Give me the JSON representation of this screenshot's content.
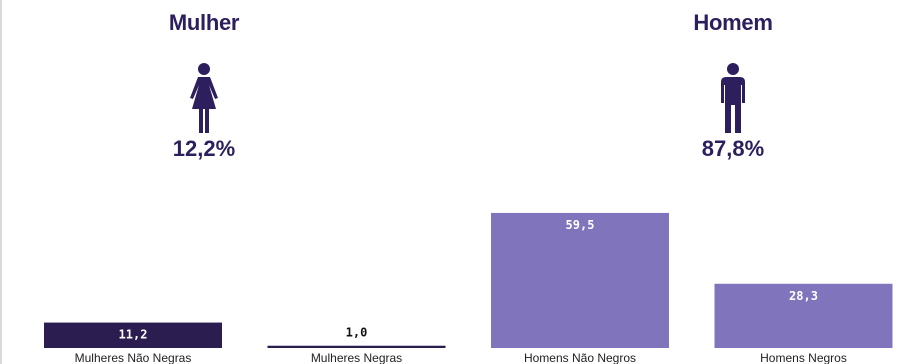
{
  "groups": [
    {
      "title": "Mulher",
      "percent": "12,2%",
      "icon": "female-icon"
    },
    {
      "title": "Homem",
      "percent": "87,8%",
      "icon": "male-icon"
    }
  ],
  "colors": {
    "dark_purple": "#2b1d4f",
    "light_purple": "#8074bd",
    "text_dark": "#2d1f5e"
  },
  "chart_data": {
    "type": "bar",
    "categories": [
      "Mulheres Não Negras",
      "Mulheres Negras",
      "Homens Não Negros",
      "Homens Negros"
    ],
    "values": [
      11.2,
      1.0,
      59.5,
      28.3
    ],
    "value_labels": [
      "11,2",
      "1,0",
      "59,5",
      "28,3"
    ],
    "bar_colors": [
      "#2b1d4f",
      "#2b1d4f",
      "#8074bd",
      "#8074bd"
    ],
    "title": "",
    "xlabel": "",
    "ylabel": "",
    "ylim": [
      0,
      100
    ],
    "grid": false
  }
}
